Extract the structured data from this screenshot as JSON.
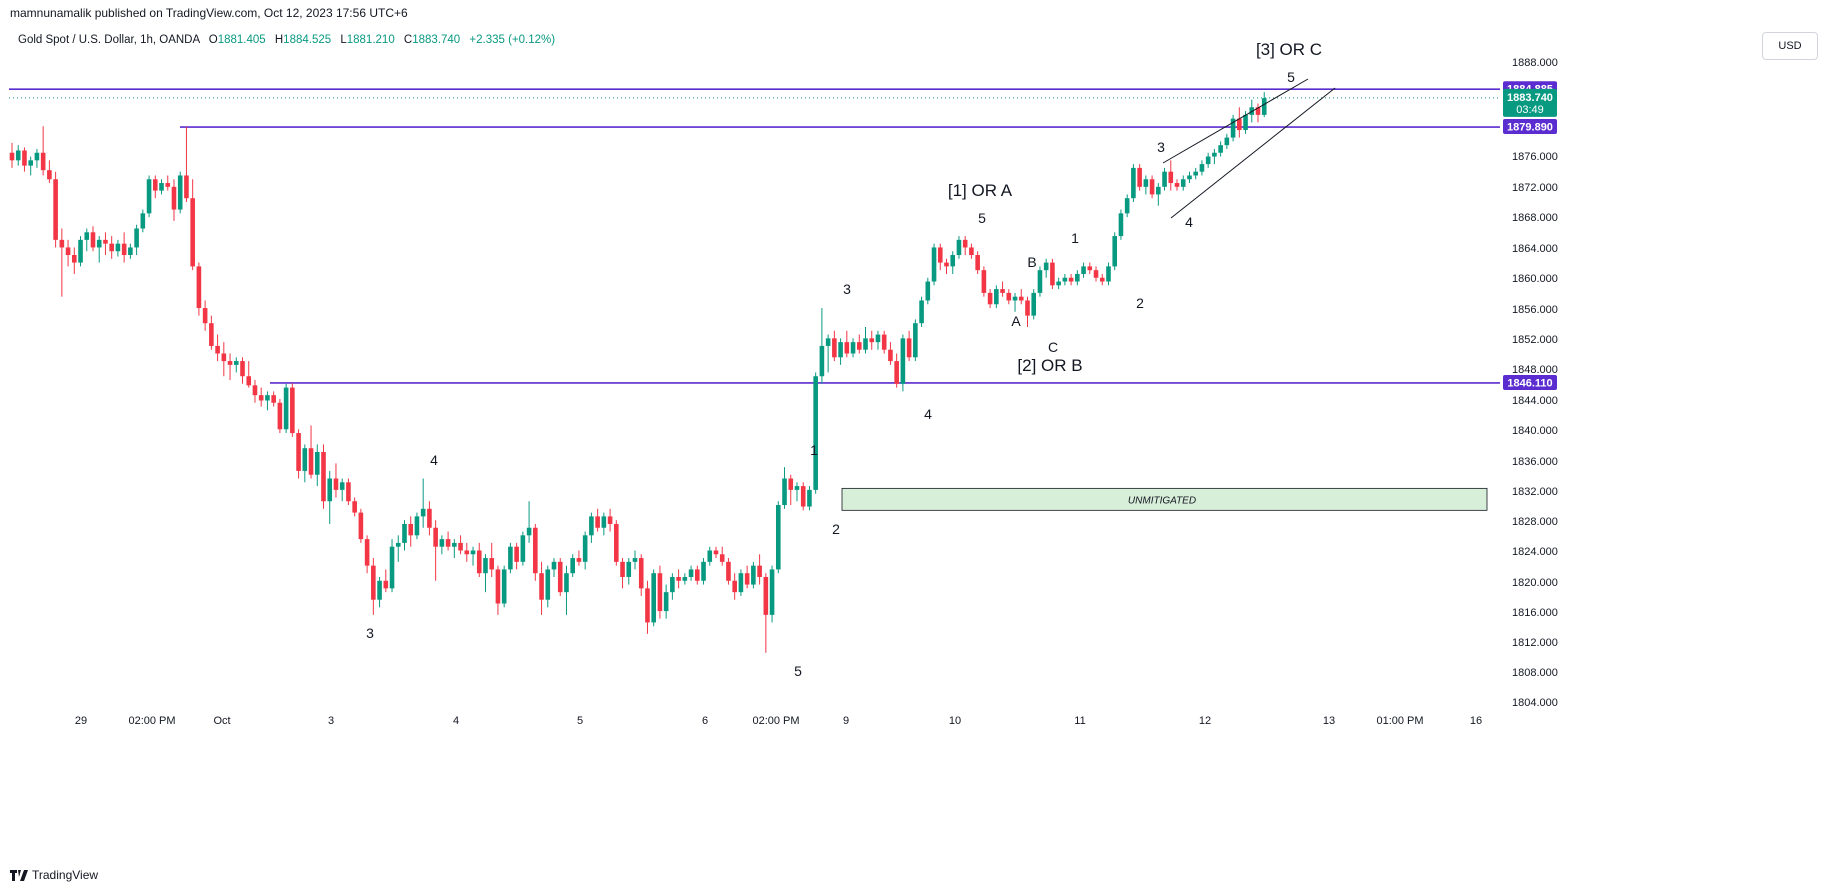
{
  "header": {
    "published": "mamnunamalik published on TradingView.com, Oct 12, 2023 17:56 UTC+6",
    "symbol": "Gold Spot / U.S. Dollar, 1h, OANDA",
    "o_label": "O",
    "o_value": "1881.405",
    "h_label": "H",
    "h_value": "1884.525",
    "l_label": "L",
    "l_value": "1881.210",
    "c_label": "C",
    "c_value": "1883.740",
    "change": "+2.335 (+0.12%)",
    "currency": "USD"
  },
  "footer": {
    "brand": "TradingView"
  },
  "colors": {
    "up": "#089981",
    "down": "#f23645",
    "level": "#5b2ccf",
    "zone_fill": "#d7eed8",
    "zone_border": "#131722"
  },
  "chart_data": {
    "type": "candlestick",
    "title": "Gold Spot / U.S. Dollar, 1h, OANDA",
    "y_ticks": [
      "1888.000",
      "1876.000",
      "1872.000",
      "1868.000",
      "1864.000",
      "1860.000",
      "1856.000",
      "1852.000",
      "1848.000",
      "1844.000",
      "1840.000",
      "1836.000",
      "1832.000",
      "1828.000",
      "1824.000",
      "1820.000",
      "1816.000",
      "1812.000",
      "1808.000",
      "1804.000"
    ],
    "x_ticks": [
      "29",
      "02:00 PM",
      "Oct",
      "3",
      "4",
      "5",
      "6",
      "02:00 PM",
      "9",
      "10",
      "11",
      "12",
      "13",
      "01:00 PM",
      "16"
    ],
    "ylim": [
      1802,
      1890
    ],
    "levels": [
      {
        "name": "level-1884",
        "value": 1884.885,
        "label": "1884.885",
        "from": "start"
      },
      {
        "name": "level-1879",
        "value": 1879.89,
        "label": "1879.890",
        "from": "Sep 29 02:00 PM"
      },
      {
        "name": "level-1846",
        "value": 1846.11,
        "label": "1846.110",
        "from": "Oct 2"
      }
    ],
    "last_price": {
      "value": 1883.74,
      "label": "1883.740",
      "countdown": "03:49"
    },
    "zone": {
      "label": "UNMITIGATED",
      "top": 1832.2,
      "bottom": 1829.3
    },
    "wave_labels": [
      {
        "text": "3",
        "big": false
      },
      {
        "text": "4",
        "big": false
      },
      {
        "text": "5",
        "big": false
      },
      {
        "text": "1",
        "big": false
      },
      {
        "text": "2",
        "big": false
      },
      {
        "text": "3",
        "big": false
      },
      {
        "text": "4",
        "big": false
      },
      {
        "text": "5",
        "big": false
      },
      {
        "text": "[1] OR A",
        "big": true
      },
      {
        "text": "A",
        "big": false
      },
      {
        "text": "B",
        "big": false
      },
      {
        "text": "C",
        "big": false
      },
      {
        "text": "[2] OR B",
        "big": true
      },
      {
        "text": "1",
        "big": false
      },
      {
        "text": "2",
        "big": false
      },
      {
        "text": "3",
        "big": false
      },
      {
        "text": "4",
        "big": false
      },
      {
        "text": "5",
        "big": false
      },
      {
        "text": "[3] OR C",
        "big": true
      }
    ],
    "candles": [
      [
        1876.5,
        1877.8,
        1874.5,
        1875.5
      ],
      [
        1875.5,
        1877.5,
        1874.8,
        1876.8
      ],
      [
        1876.8,
        1877.2,
        1874.0,
        1874.8
      ],
      [
        1874.8,
        1876.0,
        1873.5,
        1875.5
      ],
      [
        1875.5,
        1877.0,
        1874.5,
        1876.5
      ],
      [
        1876.5,
        1880.0,
        1873.5,
        1874.2
      ],
      [
        1874.2,
        1875.5,
        1872.5,
        1873.0
      ],
      [
        1873.0,
        1874.0,
        1864.0,
        1865.0
      ],
      [
        1865.0,
        1866.5,
        1857.5,
        1864.0
      ],
      [
        1864.0,
        1865.0,
        1861.5,
        1863.0
      ],
      [
        1863.0,
        1864.0,
        1860.5,
        1862.0
      ],
      [
        1862.0,
        1865.5,
        1861.5,
        1865.0
      ],
      [
        1865.0,
        1866.5,
        1863.5,
        1866.0
      ],
      [
        1866.0,
        1866.8,
        1863.5,
        1864.0
      ],
      [
        1864.0,
        1865.5,
        1862.0,
        1865.0
      ],
      [
        1865.0,
        1866.0,
        1863.0,
        1864.5
      ],
      [
        1864.5,
        1865.5,
        1862.5,
        1863.5
      ],
      [
        1863.5,
        1865.0,
        1862.8,
        1864.5
      ],
      [
        1864.5,
        1866.0,
        1862.0,
        1863.0
      ],
      [
        1863.0,
        1864.5,
        1862.5,
        1864.0
      ],
      [
        1864.0,
        1867.0,
        1863.0,
        1866.5
      ],
      [
        1866.5,
        1869.0,
        1866.0,
        1868.5
      ],
      [
        1868.5,
        1873.5,
        1868.0,
        1873.0
      ],
      [
        1873.0,
        1873.5,
        1870.5,
        1871.5
      ],
      [
        1871.5,
        1873.0,
        1871.0,
        1872.5
      ],
      [
        1872.5,
        1873.5,
        1871.5,
        1872.0
      ],
      [
        1872.0,
        1873.0,
        1867.5,
        1869.0
      ],
      [
        1869.0,
        1874.0,
        1868.5,
        1873.5
      ],
      [
        1873.5,
        1879.9,
        1870.0,
        1870.5
      ],
      [
        1870.5,
        1873.0,
        1861.0,
        1861.5
      ],
      [
        1861.5,
        1862.0,
        1855.0,
        1856.0
      ],
      [
        1856.0,
        1857.0,
        1853.0,
        1854.0
      ],
      [
        1854.0,
        1855.0,
        1850.5,
        1851.0
      ],
      [
        1851.0,
        1852.5,
        1849.0,
        1850.0
      ],
      [
        1850.0,
        1851.5,
        1847.0,
        1849.0
      ],
      [
        1849.0,
        1850.0,
        1846.5,
        1848.5
      ],
      [
        1848.5,
        1849.5,
        1847.5,
        1849.0
      ],
      [
        1849.0,
        1849.5,
        1846.0,
        1847.0
      ],
      [
        1847.0,
        1849.0,
        1845.5,
        1845.8
      ],
      [
        1845.8,
        1846.5,
        1843.5,
        1844.5
      ],
      [
        1844.5,
        1845.5,
        1843.0,
        1843.8
      ],
      [
        1843.8,
        1845.0,
        1842.5,
        1844.5
      ],
      [
        1844.5,
        1845.0,
        1843.0,
        1843.5
      ],
      [
        1843.5,
        1844.0,
        1839.5,
        1840.0
      ],
      [
        1840.0,
        1846.0,
        1839.5,
        1845.5
      ],
      [
        1845.5,
        1846.1,
        1839.0,
        1839.5
      ],
      [
        1839.5,
        1840.0,
        1833.5,
        1834.5
      ],
      [
        1834.5,
        1838.0,
        1833.0,
        1837.5
      ],
      [
        1837.5,
        1840.5,
        1833.5,
        1834.0
      ],
      [
        1834.0,
        1838.0,
        1832.5,
        1837.0
      ],
      [
        1837.0,
        1838.0,
        1829.5,
        1830.5
      ],
      [
        1830.5,
        1834.5,
        1827.5,
        1833.5
      ],
      [
        1833.5,
        1835.5,
        1831.0,
        1832.0
      ],
      [
        1832.0,
        1833.5,
        1830.5,
        1833.0
      ],
      [
        1833.0,
        1833.5,
        1830.0,
        1830.5
      ],
      [
        1830.5,
        1831.0,
        1828.5,
        1829.0
      ],
      [
        1829.0,
        1829.5,
        1825.0,
        1825.5
      ],
      [
        1825.5,
        1826.0,
        1821.0,
        1822.0
      ],
      [
        1822.0,
        1823.0,
        1815.5,
        1817.5
      ],
      [
        1817.5,
        1820.5,
        1816.5,
        1820.0
      ],
      [
        1820.0,
        1821.5,
        1818.5,
        1819.0
      ],
      [
        1819.0,
        1825.5,
        1818.5,
        1824.5
      ],
      [
        1824.5,
        1826.0,
        1822.5,
        1825.0
      ],
      [
        1825.0,
        1828.0,
        1824.0,
        1827.5
      ],
      [
        1827.5,
        1828.5,
        1824.5,
        1826.0
      ],
      [
        1826.0,
        1829.0,
        1825.5,
        1828.5
      ],
      [
        1828.5,
        1833.5,
        1827.0,
        1829.5
      ],
      [
        1829.5,
        1830.5,
        1826.0,
        1827.0
      ],
      [
        1827.0,
        1828.0,
        1820.0,
        1824.5
      ],
      [
        1824.5,
        1826.0,
        1823.5,
        1825.5
      ],
      [
        1825.5,
        1826.5,
        1824.0,
        1824.5
      ],
      [
        1824.5,
        1825.5,
        1823.0,
        1825.0
      ],
      [
        1825.0,
        1826.0,
        1823.5,
        1824.0
      ],
      [
        1824.0,
        1825.0,
        1822.5,
        1823.5
      ],
      [
        1823.5,
        1824.5,
        1822.0,
        1824.0
      ],
      [
        1824.0,
        1825.0,
        1820.5,
        1821.0
      ],
      [
        1821.0,
        1823.5,
        1818.5,
        1823.0
      ],
      [
        1823.0,
        1825.0,
        1820.5,
        1821.5
      ],
      [
        1821.5,
        1822.0,
        1815.5,
        1817.0
      ],
      [
        1817.0,
        1822.0,
        1816.5,
        1821.5
      ],
      [
        1821.5,
        1825.0,
        1821.0,
        1824.5
      ],
      [
        1824.5,
        1825.0,
        1821.5,
        1822.5
      ],
      [
        1822.5,
        1826.5,
        1822.0,
        1826.0
      ],
      [
        1826.0,
        1830.5,
        1825.0,
        1827.0
      ],
      [
        1827.0,
        1827.5,
        1820.0,
        1821.0
      ],
      [
        1821.0,
        1822.5,
        1815.5,
        1817.5
      ],
      [
        1817.5,
        1822.0,
        1816.5,
        1821.5
      ],
      [
        1821.5,
        1823.0,
        1820.5,
        1822.5
      ],
      [
        1822.5,
        1823.0,
        1818.0,
        1818.5
      ],
      [
        1818.5,
        1822.0,
        1815.5,
        1821.0
      ],
      [
        1821.0,
        1823.5,
        1820.5,
        1823.0
      ],
      [
        1823.0,
        1824.0,
        1822.0,
        1822.5
      ],
      [
        1822.5,
        1826.5,
        1821.5,
        1826.0
      ],
      [
        1826.0,
        1829.0,
        1825.0,
        1828.5
      ],
      [
        1828.5,
        1829.5,
        1826.5,
        1827.0
      ],
      [
        1827.0,
        1829.0,
        1826.0,
        1828.5
      ],
      [
        1828.5,
        1829.5,
        1826.5,
        1827.5
      ],
      [
        1827.5,
        1828.0,
        1822.0,
        1822.5
      ],
      [
        1822.5,
        1823.0,
        1819.0,
        1820.5
      ],
      [
        1820.5,
        1823.0,
        1819.5,
        1822.5
      ],
      [
        1822.5,
        1824.0,
        1821.5,
        1823.0
      ],
      [
        1823.0,
        1823.5,
        1818.0,
        1819.0
      ],
      [
        1819.0,
        1820.0,
        1813.0,
        1814.5
      ],
      [
        1814.5,
        1821.5,
        1814.0,
        1821.0
      ],
      [
        1821.0,
        1822.0,
        1815.0,
        1816.0
      ],
      [
        1816.0,
        1819.5,
        1815.0,
        1818.5
      ],
      [
        1818.5,
        1821.0,
        1817.5,
        1820.5
      ],
      [
        1820.5,
        1821.5,
        1819.0,
        1820.0
      ],
      [
        1820.0,
        1821.0,
        1819.5,
        1820.5
      ],
      [
        1820.5,
        1822.0,
        1820.0,
        1821.5
      ],
      [
        1821.5,
        1822.0,
        1819.5,
        1820.0
      ],
      [
        1820.0,
        1823.0,
        1819.5,
        1822.5
      ],
      [
        1822.5,
        1824.5,
        1822.0,
        1824.0
      ],
      [
        1824.0,
        1824.5,
        1823.0,
        1823.5
      ],
      [
        1823.5,
        1824.5,
        1822.0,
        1822.5
      ],
      [
        1822.5,
        1823.0,
        1819.5,
        1820.0
      ],
      [
        1820.0,
        1821.0,
        1817.5,
        1818.5
      ],
      [
        1818.5,
        1821.5,
        1818.0,
        1821.0
      ],
      [
        1821.0,
        1822.0,
        1819.0,
        1819.5
      ],
      [
        1819.5,
        1822.5,
        1819.0,
        1822.0
      ],
      [
        1822.0,
        1823.5,
        1819.5,
        1820.5
      ],
      [
        1820.5,
        1821.0,
        1810.5,
        1815.5
      ],
      [
        1815.5,
        1822.0,
        1814.5,
        1821.5
      ],
      [
        1821.5,
        1830.5,
        1821.0,
        1830.0
      ],
      [
        1830.0,
        1835.0,
        1829.5,
        1833.5
      ],
      [
        1833.5,
        1834.0,
        1830.0,
        1832.0
      ],
      [
        1832.0,
        1833.0,
        1830.5,
        1832.5
      ],
      [
        1832.5,
        1833.0,
        1829.3,
        1829.8
      ],
      [
        1829.8,
        1832.5,
        1829.3,
        1832.0
      ],
      [
        1832.0,
        1847.5,
        1831.5,
        1847.0
      ],
      [
        1847.0,
        1856.0,
        1846.0,
        1851.0
      ],
      [
        1851.0,
        1852.5,
        1847.5,
        1852.0
      ],
      [
        1852.0,
        1853.0,
        1849.0,
        1849.5
      ],
      [
        1849.5,
        1852.0,
        1848.5,
        1851.5
      ],
      [
        1851.5,
        1853.0,
        1849.5,
        1850.0
      ],
      [
        1850.0,
        1852.0,
        1849.5,
        1851.5
      ],
      [
        1851.5,
        1852.5,
        1850.0,
        1850.5
      ],
      [
        1850.5,
        1853.5,
        1850.0,
        1852.0
      ],
      [
        1852.0,
        1853.0,
        1850.5,
        1851.5
      ],
      [
        1851.5,
        1853.0,
        1850.5,
        1852.5
      ],
      [
        1852.5,
        1853.0,
        1850.0,
        1850.5
      ],
      [
        1850.5,
        1851.5,
        1848.5,
        1849.0
      ],
      [
        1849.0,
        1850.0,
        1845.5,
        1846.0
      ],
      [
        1846.0,
        1852.5,
        1845.0,
        1852.0
      ],
      [
        1852.0,
        1853.0,
        1849.0,
        1849.5
      ],
      [
        1849.5,
        1854.5,
        1849.0,
        1854.0
      ],
      [
        1854.0,
        1857.5,
        1853.5,
        1857.0
      ],
      [
        1857.0,
        1860.0,
        1856.5,
        1859.5
      ],
      [
        1859.5,
        1864.5,
        1859.0,
        1864.0
      ],
      [
        1864.0,
        1864.5,
        1861.0,
        1862.0
      ],
      [
        1862.0,
        1862.5,
        1860.5,
        1861.5
      ],
      [
        1861.5,
        1863.5,
        1860.5,
        1863.0
      ],
      [
        1863.0,
        1865.5,
        1862.5,
        1865.0
      ],
      [
        1865.0,
        1865.5,
        1863.0,
        1864.0
      ],
      [
        1864.0,
        1864.5,
        1862.5,
        1863.0
      ],
      [
        1863.0,
        1863.5,
        1860.5,
        1861.0
      ],
      [
        1861.0,
        1861.5,
        1857.5,
        1858.0
      ],
      [
        1858.0,
        1858.5,
        1856.0,
        1856.5
      ],
      [
        1856.5,
        1859.0,
        1856.0,
        1858.5
      ],
      [
        1858.5,
        1859.5,
        1857.5,
        1858.0
      ],
      [
        1858.0,
        1858.5,
        1856.5,
        1857.0
      ],
      [
        1857.0,
        1858.0,
        1855.5,
        1857.5
      ],
      [
        1857.5,
        1858.5,
        1856.5,
        1857.0
      ],
      [
        1857.0,
        1857.5,
        1853.5,
        1855.0
      ],
      [
        1855.0,
        1858.5,
        1854.5,
        1858.0
      ],
      [
        1858.0,
        1861.5,
        1857.5,
        1861.0
      ],
      [
        1861.0,
        1862.5,
        1860.0,
        1862.0
      ],
      [
        1862.0,
        1862.5,
        1858.5,
        1859.0
      ],
      [
        1859.0,
        1860.0,
        1858.5,
        1859.5
      ],
      [
        1859.5,
        1860.5,
        1859.0,
        1860.0
      ],
      [
        1860.0,
        1860.5,
        1859.0,
        1859.5
      ],
      [
        1859.5,
        1861.0,
        1859.0,
        1860.5
      ],
      [
        1860.5,
        1862.0,
        1860.0,
        1861.5
      ],
      [
        1861.5,
        1862.0,
        1860.5,
        1861.0
      ],
      [
        1861.0,
        1861.5,
        1859.5,
        1860.0
      ],
      [
        1860.0,
        1860.5,
        1859.0,
        1859.5
      ],
      [
        1859.5,
        1862.0,
        1859.0,
        1861.5
      ],
      [
        1861.5,
        1866.0,
        1861.0,
        1865.5
      ],
      [
        1865.5,
        1869.0,
        1865.0,
        1868.5
      ],
      [
        1868.5,
        1871.0,
        1868.0,
        1870.5
      ],
      [
        1870.5,
        1875.0,
        1870.0,
        1874.5
      ],
      [
        1874.5,
        1875.0,
        1871.5,
        1872.0
      ],
      [
        1872.0,
        1873.5,
        1871.0,
        1873.0
      ],
      [
        1873.0,
        1873.5,
        1870.5,
        1871.0
      ],
      [
        1871.0,
        1872.5,
        1869.5,
        1872.0
      ],
      [
        1872.0,
        1874.5,
        1871.5,
        1874.0
      ],
      [
        1874.0,
        1875.5,
        1871.5,
        1872.5
      ],
      [
        1872.5,
        1873.0,
        1871.5,
        1872.0
      ],
      [
        1872.0,
        1873.5,
        1871.5,
        1873.0
      ],
      [
        1873.0,
        1874.0,
        1872.5,
        1873.5
      ],
      [
        1873.5,
        1874.5,
        1873.0,
        1874.0
      ],
      [
        1874.0,
        1875.5,
        1873.5,
        1875.0
      ],
      [
        1875.0,
        1876.5,
        1874.5,
        1876.0
      ],
      [
        1876.0,
        1877.0,
        1875.0,
        1876.5
      ],
      [
        1876.5,
        1878.0,
        1876.0,
        1877.5
      ],
      [
        1877.5,
        1879.0,
        1877.0,
        1878.5
      ],
      [
        1878.5,
        1881.5,
        1878.0,
        1881.0
      ],
      [
        1881.0,
        1882.5,
        1878.5,
        1879.5
      ],
      [
        1879.5,
        1882.0,
        1879.0,
        1881.5
      ],
      [
        1881.5,
        1883.5,
        1880.5,
        1882.5
      ],
      [
        1882.5,
        1883.0,
        1880.5,
        1881.5
      ],
      [
        1881.5,
        1884.5,
        1881.2,
        1883.7
      ]
    ]
  }
}
